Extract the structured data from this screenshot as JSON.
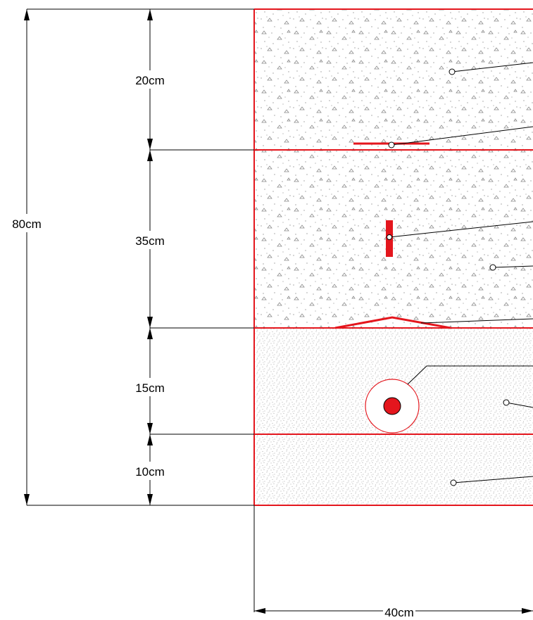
{
  "dimensions": {
    "total_height_label": "80cm",
    "width_label": "40cm",
    "layers": [
      {
        "label": "20cm"
      },
      {
        "label": "35cm"
      },
      {
        "label": "15cm"
      },
      {
        "label": "10cm"
      }
    ]
  },
  "colors": {
    "accent": "#e4161d",
    "line": "#000000",
    "hatch_coarse": "#8a8a8a",
    "hatch_fine": "#9a9a9a"
  }
}
